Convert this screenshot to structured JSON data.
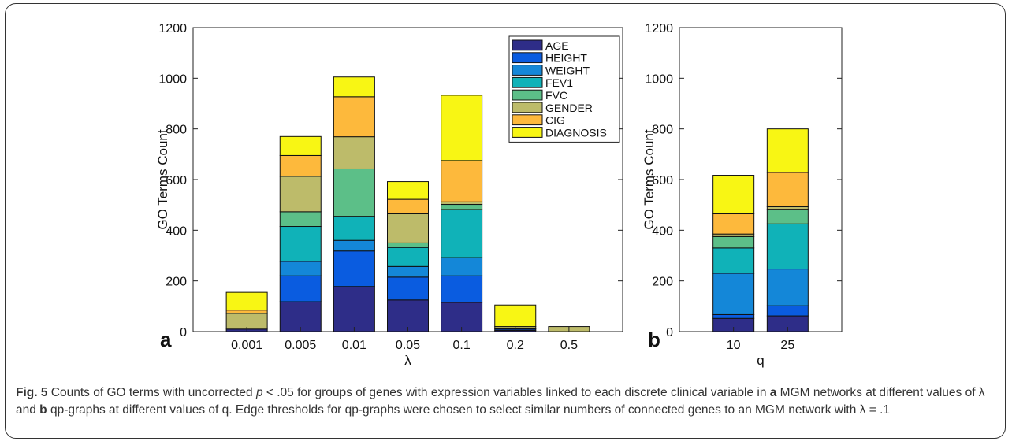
{
  "chart_data": [
    {
      "type": "bar",
      "stacked": true,
      "panel_label": "a",
      "xlabel": "λ",
      "ylabel": "GO Terms Count",
      "ylim": [
        0,
        1200
      ],
      "yticks": [
        0,
        200,
        400,
        600,
        800,
        1000,
        1200
      ],
      "categories": [
        "0.001",
        "0.005",
        "0.01",
        "0.05",
        "0.1",
        "0.2",
        "0.5"
      ],
      "legend_position": "top-right",
      "series": [
        {
          "name": "AGE",
          "color": "#2e2d88",
          "values": [
            10,
            118,
            178,
            125,
            115,
            5,
            0
          ]
        },
        {
          "name": "HEIGHT",
          "color": "#0a5ce0",
          "values": [
            0,
            102,
            140,
            90,
            105,
            5,
            0
          ]
        },
        {
          "name": "WEIGHT",
          "color": "#1487d8",
          "values": [
            0,
            57,
            42,
            42,
            72,
            2,
            0
          ]
        },
        {
          "name": "FEV1",
          "color": "#10b2b8",
          "values": [
            0,
            138,
            95,
            75,
            190,
            0,
            0
          ]
        },
        {
          "name": "FVC",
          "color": "#5cbf88",
          "values": [
            0,
            58,
            187,
            18,
            20,
            0,
            0
          ]
        },
        {
          "name": "GENDER",
          "color": "#bdbb6a",
          "values": [
            62,
            140,
            127,
            115,
            10,
            8,
            20
          ]
        },
        {
          "name": "CIG",
          "color": "#fdb93c",
          "values": [
            13,
            82,
            158,
            57,
            163,
            0,
            0
          ]
        },
        {
          "name": "DIAGNOSIS",
          "color": "#f8f614",
          "values": [
            70,
            75,
            78,
            70,
            258,
            85,
            0
          ]
        }
      ]
    },
    {
      "type": "bar",
      "stacked": true,
      "panel_label": "b",
      "xlabel": "q",
      "ylabel": "GO Terms Count",
      "ylim": [
        0,
        1200
      ],
      "yticks": [
        0,
        200,
        400,
        600,
        800,
        1000,
        1200
      ],
      "categories": [
        "10",
        "25"
      ],
      "series": [
        {
          "name": "AGE",
          "color": "#2e2d88",
          "values": [
            52,
            62
          ]
        },
        {
          "name": "HEIGHT",
          "color": "#0a5ce0",
          "values": [
            15,
            40
          ]
        },
        {
          "name": "WEIGHT",
          "color": "#1487d8",
          "values": [
            163,
            145
          ]
        },
        {
          "name": "FEV1",
          "color": "#10b2b8",
          "values": [
            100,
            178
          ]
        },
        {
          "name": "FVC",
          "color": "#5cbf88",
          "values": [
            45,
            58
          ]
        },
        {
          "name": "GENDER",
          "color": "#bdbb6a",
          "values": [
            10,
            10
          ]
        },
        {
          "name": "CIG",
          "color": "#fdb93c",
          "values": [
            80,
            135
          ]
        },
        {
          "name": "DIAGNOSIS",
          "color": "#f8f614",
          "values": [
            152,
            172
          ]
        }
      ]
    }
  ],
  "caption": {
    "fig_label": "Fig. 5",
    "text_1": " Counts of GO terms with uncorrected ",
    "p_symbol": "p",
    "text_2": " < .05 for groups of genes with expression variables linked to each discrete clinical variable in ",
    "ref_a": "a",
    "text_3": " MGM networks at different values of λ and ",
    "ref_b": "b",
    "text_4": " qp-graphs at different values of q. Edge thresholds for qp-graphs were chosen to select similar numbers of connected genes to an MGM network with λ = .1"
  }
}
